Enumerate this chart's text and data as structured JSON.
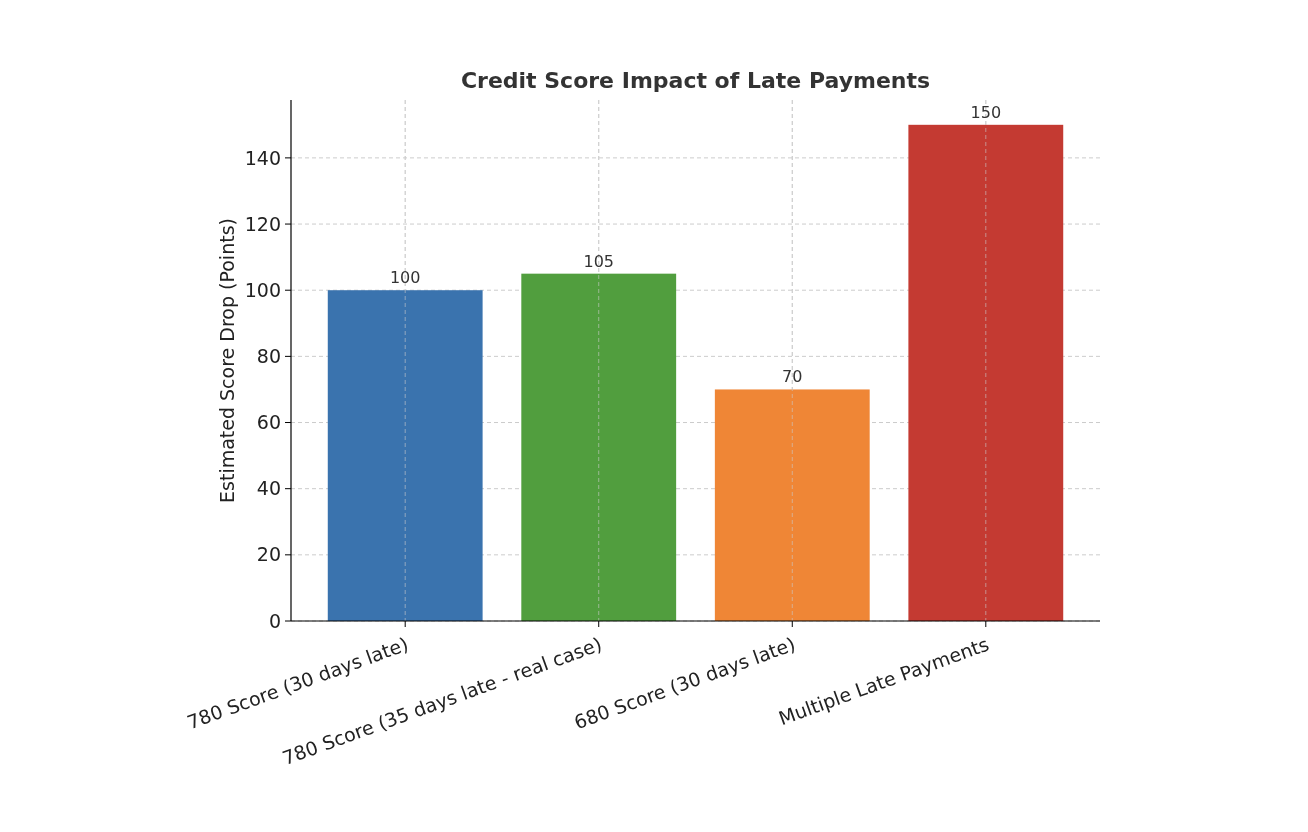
{
  "chart_data": {
    "type": "bar",
    "title": "Credit Score Impact of Late Payments",
    "ylabel": "Estimated Score Drop (Points)",
    "categories": [
      "780 Score (30 days late)",
      "780 Score (35 days late - real case)",
      "680 Score (30 days late)",
      "Multiple Late Payments"
    ],
    "values": [
      100,
      105,
      70,
      150
    ],
    "colors": [
      "#3a73ae",
      "#519e3e",
      "#ef8636",
      "#c43a32"
    ],
    "ylim": [
      0,
      157.5
    ],
    "yticks": [
      0,
      20,
      40,
      60,
      80,
      100,
      120,
      140
    ],
    "grid": true,
    "data_labels": true
  }
}
